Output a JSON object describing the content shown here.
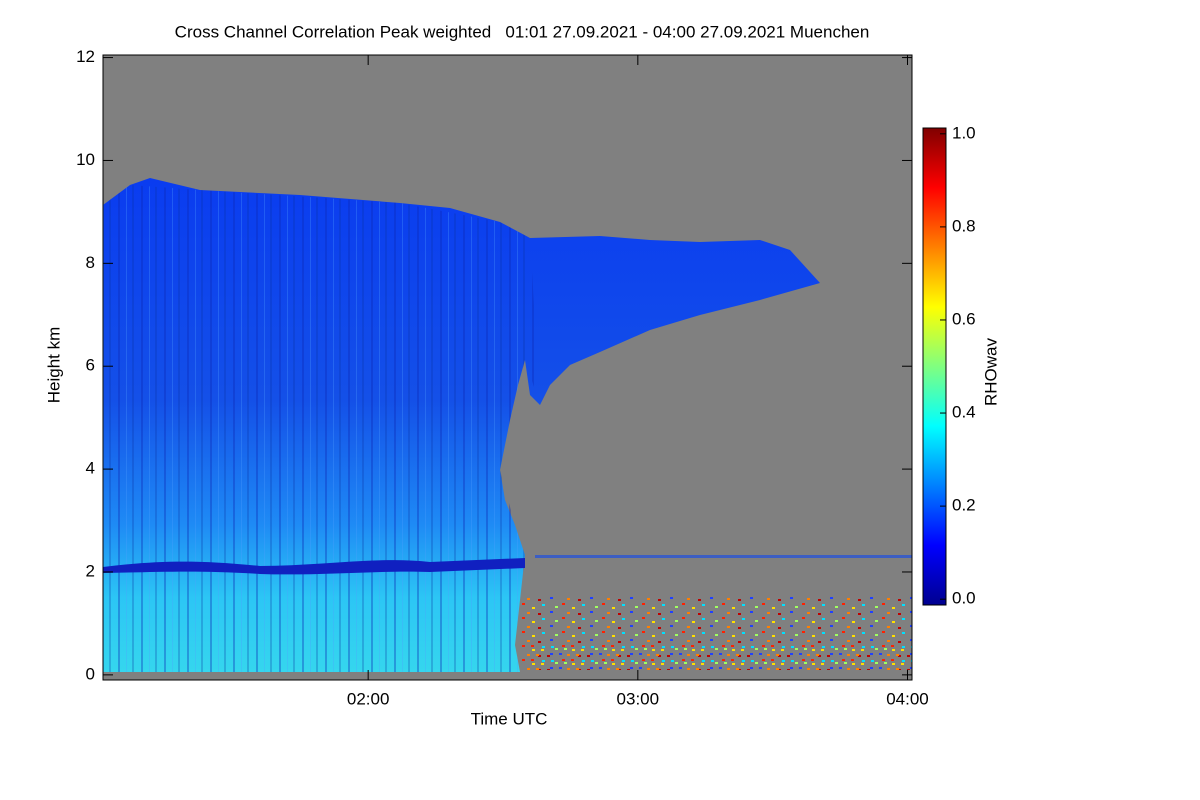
{
  "chart_data": {
    "type": "heatmap",
    "title": "Cross Channel Correlation Peak weighted   01:01 27.09.2021 - 04:00 27.09.2021 Muenchen",
    "xlabel": "Time UTC",
    "ylabel": "Height km",
    "xlim": [
      1.0167,
      4.0167
    ],
    "xticks": [
      {
        "value": 2,
        "label": "02:00"
      },
      {
        "value": 3,
        "label": "03:00"
      },
      {
        "value": 4,
        "label": "04:00"
      }
    ],
    "ylim": [
      -0.1,
      12.05
    ],
    "yticks": [
      0,
      2,
      4,
      6,
      8,
      10,
      12
    ],
    "colorbar": {
      "label": "RHOwav",
      "lim": [
        -0.0125,
        1.0125
      ],
      "ticks": [
        {
          "value": 0,
          "label": "0.0"
        },
        {
          "value": 0.2,
          "label": "0.2"
        },
        {
          "value": 0.4,
          "label": "0.4"
        },
        {
          "value": 0.6,
          "label": "0.6"
        },
        {
          "value": 0.8,
          "label": "0.8"
        },
        {
          "value": 1,
          "label": "1.0"
        }
      ],
      "colors": [
        "#00008f",
        "#0000ff",
        "#0080ff",
        "#00ffff",
        "#80ff80",
        "#ffff00",
        "#ff8000",
        "#ff0000",
        "#800000"
      ]
    }
  }
}
